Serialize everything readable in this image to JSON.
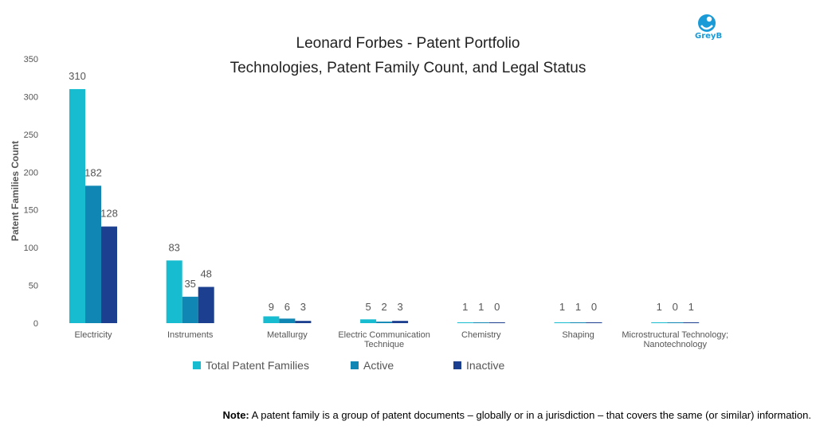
{
  "header": {
    "title_line1": "Leonard Forbes - Patent Portfolio",
    "title_line2": "Technologies, Patent Family Count, and Legal Status",
    "logo_text": "GreyB"
  },
  "note": {
    "label": "Note:",
    "text": " A patent family is a group of patent documents – globally or in a jurisdiction – that covers the same (or similar) information."
  },
  "colors": {
    "total": "#17bcd0",
    "active": "#0f86b3",
    "inactive": "#1c3f8f",
    "axis_text": "#555555",
    "logo": "#1a9bd7"
  },
  "chart_data": {
    "type": "bar",
    "ylabel": "Patent Families Count",
    "ylim": [
      0,
      350
    ],
    "yticks": [
      0,
      50,
      100,
      150,
      200,
      250,
      300,
      350
    ],
    "grid": false,
    "legend_position": "bottom",
    "categories": [
      [
        "Electricity"
      ],
      [
        "Instruments"
      ],
      [
        "Metallurgy"
      ],
      [
        "Electric Communication",
        "Technique"
      ],
      [
        "Chemistry"
      ],
      [
        "Shaping"
      ],
      [
        "Microstructural Technology;",
        "Nanotechnology"
      ]
    ],
    "series": [
      {
        "name": "Total Patent Families",
        "color": "#17bcd0",
        "values": [
          310,
          83,
          9,
          5,
          1,
          1,
          1
        ]
      },
      {
        "name": "Active",
        "color": "#0f86b3",
        "values": [
          182,
          35,
          6,
          2,
          1,
          1,
          0
        ]
      },
      {
        "name": "Inactive",
        "color": "#1c3f8f",
        "values": [
          128,
          48,
          3,
          3,
          0,
          0,
          1
        ]
      }
    ]
  }
}
